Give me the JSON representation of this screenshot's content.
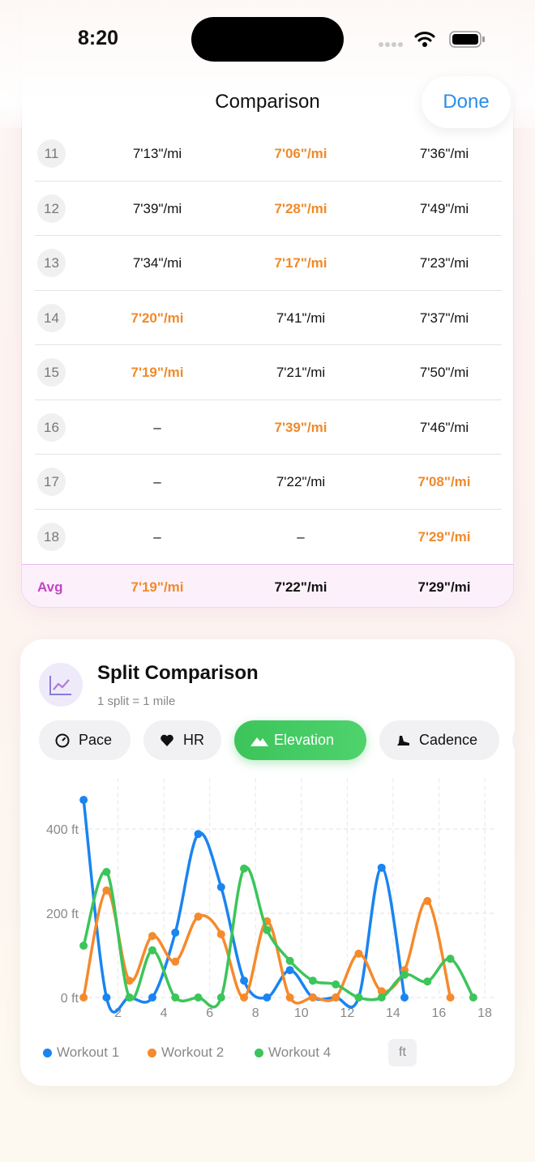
{
  "status_bar": {
    "time": "8:20"
  },
  "header": {
    "title": "Comparison",
    "done_button": "Done"
  },
  "table": {
    "rows": [
      {
        "split": 11,
        "cells": [
          "7'13\"/mi",
          "7'06\"/mi",
          "7'36\"/mi"
        ],
        "best": 1
      },
      {
        "split": 12,
        "cells": [
          "7'39\"/mi",
          "7'28\"/mi",
          "7'49\"/mi"
        ],
        "best": 1
      },
      {
        "split": 13,
        "cells": [
          "7'34\"/mi",
          "7'17\"/mi",
          "7'23\"/mi"
        ],
        "best": 1
      },
      {
        "split": 14,
        "cells": [
          "7'20\"/mi",
          "7'41\"/mi",
          "7'37\"/mi"
        ],
        "best": 0
      },
      {
        "split": 15,
        "cells": [
          "7'19\"/mi",
          "7'21\"/mi",
          "7'50\"/mi"
        ],
        "best": 0
      },
      {
        "split": 16,
        "cells": [
          "–",
          "7'39\"/mi",
          "7'46\"/mi"
        ],
        "best": 1
      },
      {
        "split": 17,
        "cells": [
          "–",
          "7'22\"/mi",
          "7'08\"/mi"
        ],
        "best": 2
      },
      {
        "split": 18,
        "cells": [
          "–",
          "–",
          "7'29\"/mi"
        ],
        "best": 2
      }
    ],
    "average": {
      "label": "Avg",
      "cells": [
        "7'19\"/mi",
        "7'22\"/mi",
        "7'29\"/mi"
      ],
      "best": 0
    }
  },
  "split_card": {
    "title": "Split Comparison",
    "subtitle": "1 split = 1 mile",
    "tabs": [
      "Pace",
      "HR",
      "Elevation",
      "Cadence"
    ],
    "active_tab": 2,
    "unit_badge": "ft"
  },
  "chart_data": {
    "type": "line",
    "smooth": true,
    "grid": true,
    "xlim": [
      0,
      18
    ],
    "xticks": [
      2,
      4,
      6,
      8,
      10,
      12,
      14,
      16,
      18
    ],
    "ylim": [
      0,
      520
    ],
    "yticks": [
      {
        "value": 0,
        "label": "0 ft"
      },
      {
        "value": 200,
        "label": "200 ft"
      },
      {
        "value": 400,
        "label": "400 ft"
      }
    ],
    "series": [
      {
        "name": "Workout 1",
        "color": "#1a84f0",
        "x": [
          0.5,
          1.5,
          2.5,
          3.5,
          4.5,
          5.5,
          6.5,
          7.5,
          8.5,
          9.5,
          10.5,
          11.5,
          12.5,
          13.5,
          14.5
        ],
        "values": [
          469,
          0,
          0,
          0,
          154,
          388,
          262,
          40,
          0,
          65,
          0,
          0,
          0,
          308,
          0
        ]
      },
      {
        "name": "Workout 2",
        "color": "#f58a2c",
        "x": [
          0.5,
          1.5,
          2.5,
          3.5,
          4.5,
          5.5,
          6.5,
          7.5,
          8.5,
          9.5,
          10.5,
          11.5,
          12.5,
          13.5,
          14.5,
          15.5,
          16.5
        ],
        "values": [
          0,
          254,
          40,
          146,
          85,
          192,
          150,
          0,
          181,
          0,
          0,
          0,
          104,
          15,
          65,
          229,
          0
        ]
      },
      {
        "name": "Workout 4",
        "color": "#3cc55a",
        "x": [
          0.5,
          1.5,
          2.5,
          3.5,
          4.5,
          5.5,
          6.5,
          7.5,
          8.5,
          9.5,
          10.5,
          11.5,
          12.5,
          13.5,
          14.5,
          15.5,
          16.5,
          17.5
        ],
        "values": [
          123,
          298,
          0,
          112,
          0,
          0,
          0,
          306,
          160,
          87,
          40,
          31,
          0,
          0,
          54,
          38,
          92,
          0
        ]
      }
    ]
  }
}
